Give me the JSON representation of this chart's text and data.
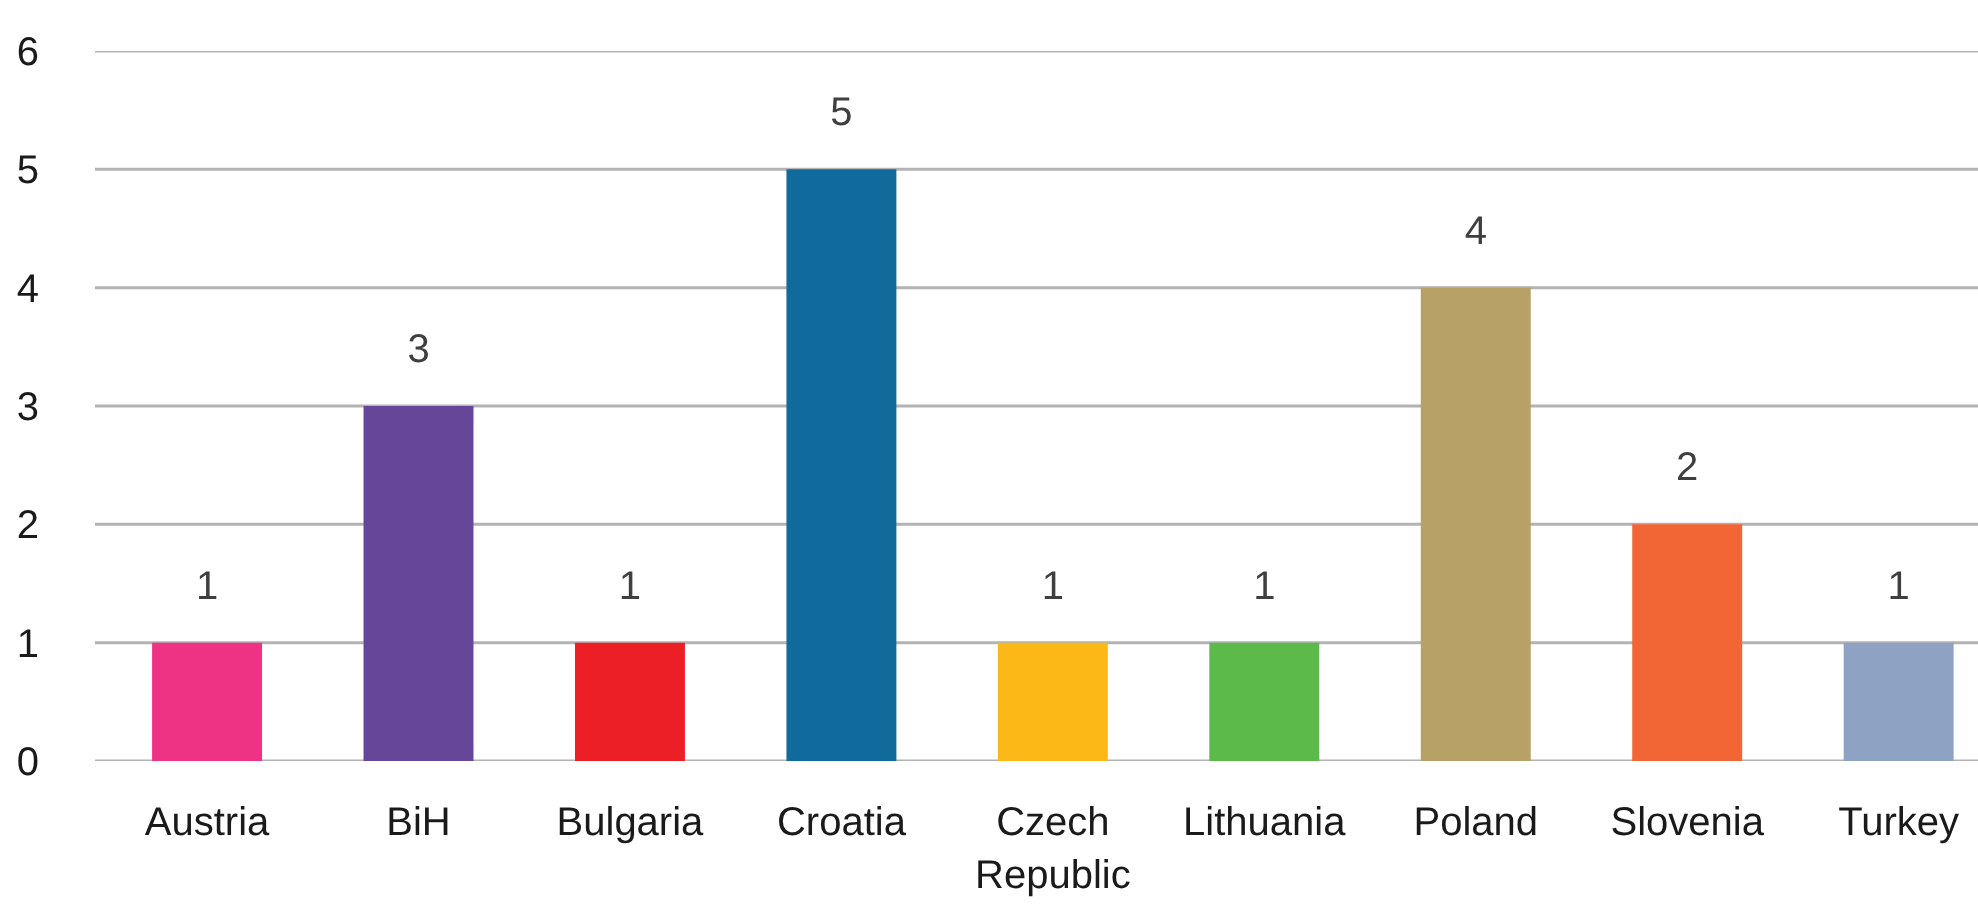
{
  "chart_data": {
    "type": "bar",
    "categories": [
      "Austria",
      "BiH",
      "Bulgaria",
      "Croatia",
      "Czech Republic",
      "Lithuania",
      "Poland",
      "Slovenia",
      "Turkey"
    ],
    "values": [
      1,
      3,
      1,
      5,
      1,
      1,
      4,
      2,
      1
    ],
    "colors": [
      "#ee3385",
      "#664699",
      "#ed1f26",
      "#106a9c",
      "#fbb817",
      "#5bba4a",
      "#b8a167",
      "#f26535",
      "#8ea3c3"
    ],
    "ylim": [
      0,
      6
    ],
    "yticks": [
      0,
      1,
      2,
      3,
      4,
      5,
      6
    ],
    "grid": "y",
    "data_labels": true
  }
}
